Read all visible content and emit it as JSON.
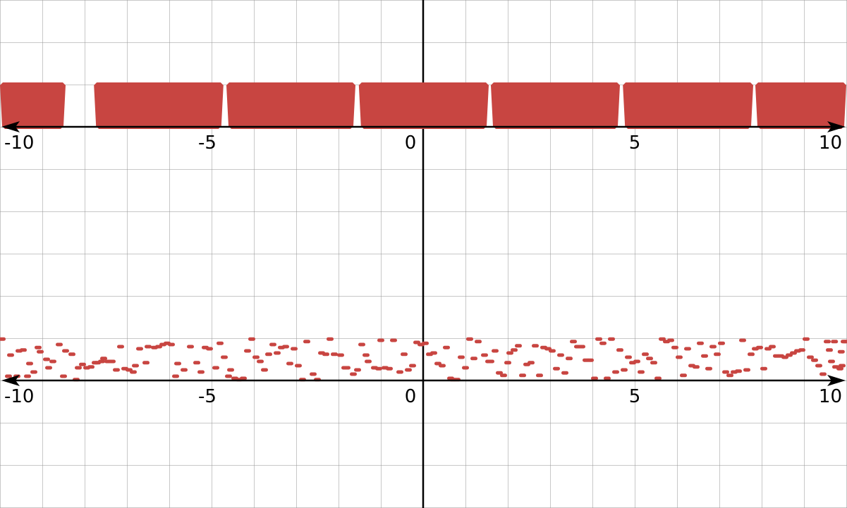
{
  "colors": {
    "grid": "#9a9a9a",
    "axis": "#000000",
    "mark": "#c84541",
    "background": "#ffffff"
  },
  "chart_data": [
    {
      "type": "bar",
      "title": "",
      "xlabel": "",
      "ylabel": "",
      "xlim": [
        -10,
        10
      ],
      "x_ticks": [
        {
          "value": -10,
          "label": "-10"
        },
        {
          "value": -5,
          "label": "-5"
        },
        {
          "value": 0,
          "label": "0"
        },
        {
          "value": 5,
          "label": "5"
        },
        {
          "value": 10,
          "label": "10"
        }
      ],
      "grid": true,
      "segments": [
        {
          "x_start": -10.0,
          "x_end": -8.45
        },
        {
          "x_start": -7.78,
          "x_end": -4.72
        },
        {
          "x_start": -4.65,
          "x_end": -1.6
        },
        {
          "x_start": -1.52,
          "x_end": 1.55
        },
        {
          "x_start": 1.6,
          "x_end": 4.65
        },
        {
          "x_start": 4.72,
          "x_end": 7.8
        },
        {
          "x_start": 7.85,
          "x_end": 10.0
        }
      ]
    },
    {
      "type": "scatter",
      "title": "",
      "xlabel": "",
      "ylabel": "",
      "xlim": [
        -10,
        10
      ],
      "ylim": [
        0,
        1
      ],
      "x_ticks": [
        {
          "value": -10,
          "label": "-10"
        },
        {
          "value": -5,
          "label": "-5"
        },
        {
          "value": 0,
          "label": "0"
        },
        {
          "value": 5,
          "label": "5"
        },
        {
          "value": 10,
          "label": "10"
        }
      ],
      "grid": true,
      "points": [
        [
          -9.95,
          0.98
        ],
        [
          -9.8,
          0.1
        ],
        [
          -9.75,
          0.6
        ],
        [
          -9.6,
          0.1
        ],
        [
          -9.55,
          0.7
        ],
        [
          -9.45,
          0.72
        ],
        [
          -9.35,
          0.1
        ],
        [
          -9.3,
          0.4
        ],
        [
          -9.2,
          0.2
        ],
        [
          -9.1,
          0.78
        ],
        [
          -9.05,
          0.68
        ],
        [
          -8.9,
          0.5
        ],
        [
          -8.85,
          0.3
        ],
        [
          -8.75,
          0.45
        ],
        [
          -8.6,
          0.85
        ],
        [
          -8.5,
          0.1
        ],
        [
          -8.45,
          0.7
        ],
        [
          -8.3,
          0.62
        ],
        [
          -8.2,
          0.02
        ],
        [
          -8.15,
          0.3
        ],
        [
          -8.05,
          0.38
        ],
        [
          -7.95,
          0.3
        ],
        [
          -7.85,
          0.32
        ],
        [
          -7.75,
          0.42
        ],
        [
          -7.7,
          0.42
        ],
        [
          -7.6,
          0.45
        ],
        [
          -7.55,
          0.52
        ],
        [
          -7.45,
          0.45
        ],
        [
          -7.35,
          0.45
        ],
        [
          -7.25,
          0.25
        ],
        [
          -7.15,
          0.8
        ],
        [
          -7.05,
          0.28
        ],
        [
          -6.95,
          0.25
        ],
        [
          -6.85,
          0.2
        ],
        [
          -6.8,
          0.35
        ],
        [
          -6.7,
          0.75
        ],
        [
          -6.55,
          0.42
        ],
        [
          -6.5,
          0.8
        ],
        [
          -6.35,
          0.78
        ],
        [
          -6.25,
          0.8
        ],
        [
          -6.15,
          0.85
        ],
        [
          -6.05,
          0.88
        ],
        [
          -5.95,
          0.85
        ],
        [
          -5.85,
          0.1
        ],
        [
          -5.8,
          0.4
        ],
        [
          -5.65,
          0.25
        ],
        [
          -5.5,
          0.8
        ],
        [
          -5.35,
          0.42
        ],
        [
          -5.25,
          0.2
        ],
        [
          -5.15,
          0.78
        ],
        [
          -5.05,
          0.75
        ],
        [
          -4.9,
          0.3
        ],
        [
          -4.8,
          0.88
        ],
        [
          -4.7,
          0.55
        ],
        [
          -4.6,
          0.1
        ],
        [
          -4.55,
          0.25
        ],
        [
          -4.45,
          0.05
        ],
        [
          -4.35,
          0.02
        ],
        [
          -4.25,
          0.05
        ],
        [
          -4.15,
          0.7
        ],
        [
          -4.05,
          0.98
        ],
        [
          -3.95,
          0.55
        ],
        [
          -3.85,
          0.45
        ],
        [
          -3.75,
          0.25
        ],
        [
          -3.65,
          0.62
        ],
        [
          -3.55,
          0.85
        ],
        [
          -3.45,
          0.65
        ],
        [
          -3.35,
          0.78
        ],
        [
          -3.25,
          0.8
        ],
        [
          -3.15,
          0.4
        ],
        [
          -3.05,
          0.75
        ],
        [
          -2.95,
          0.35
        ],
        [
          -2.85,
          0.02
        ],
        [
          -2.75,
          0.92
        ],
        [
          -2.6,
          0.15
        ],
        [
          -2.5,
          0.02
        ],
        [
          -2.4,
          0.65
        ],
        [
          -2.3,
          0.62
        ],
        [
          -2.2,
          0.98
        ],
        [
          -2.1,
          0.62
        ],
        [
          -1.95,
          0.6
        ],
        [
          -1.85,
          0.3
        ],
        [
          -1.8,
          0.3
        ],
        [
          -1.65,
          0.15
        ],
        [
          -1.55,
          0.25
        ],
        [
          -1.45,
          0.85
        ],
        [
          -1.35,
          0.6
        ],
        [
          -1.3,
          0.45
        ],
        [
          -1.15,
          0.3
        ],
        [
          -1.05,
          0.28
        ],
        [
          -1.0,
          0.95
        ],
        [
          -0.9,
          0.3
        ],
        [
          -0.8,
          0.28
        ],
        [
          -0.7,
          0.95
        ],
        [
          -0.55,
          0.2
        ],
        [
          -0.45,
          0.62
        ],
        [
          -0.35,
          0.25
        ],
        [
          -0.25,
          0.35
        ],
        [
          -0.15,
          0.9
        ],
        [
          -0.05,
          0.85
        ],
        [
          0.05,
          0.88
        ],
        [
          0.15,
          0.62
        ],
        [
          0.25,
          0.65
        ],
        [
          0.35,
          0.4
        ],
        [
          0.45,
          0.35
        ],
        [
          0.55,
          0.78
        ],
        [
          0.65,
          0.05
        ],
        [
          0.7,
          0.02
        ],
        [
          0.8,
          0.02
        ],
        [
          0.9,
          0.55
        ],
        [
          1.0,
          0.3
        ],
        [
          1.1,
          0.98
        ],
        [
          1.2,
          0.52
        ],
        [
          1.3,
          0.92
        ],
        [
          1.45,
          0.6
        ],
        [
          1.55,
          0.45
        ],
        [
          1.6,
          0.45
        ],
        [
          1.7,
          0.7
        ],
        [
          1.8,
          0.18
        ],
        [
          1.9,
          0.12
        ],
        [
          2.0,
          0.42
        ],
        [
          2.05,
          0.65
        ],
        [
          2.15,
          0.72
        ],
        [
          2.25,
          0.82
        ],
        [
          2.35,
          0.12
        ],
        [
          2.45,
          0.38
        ],
        [
          2.55,
          0.42
        ],
        [
          2.65,
          0.82
        ],
        [
          2.75,
          0.12
        ],
        [
          2.85,
          0.78
        ],
        [
          2.95,
          0.75
        ],
        [
          3.05,
          0.7
        ],
        [
          3.15,
          0.28
        ],
        [
          3.25,
          0.6
        ],
        [
          3.35,
          0.18
        ],
        [
          3.45,
          0.52
        ],
        [
          3.55,
          0.92
        ],
        [
          3.65,
          0.8
        ],
        [
          3.75,
          0.8
        ],
        [
          3.85,
          0.48
        ],
        [
          3.95,
          0.48
        ],
        [
          4.05,
          0.05
        ],
        [
          4.15,
          0.98
        ],
        [
          4.25,
          0.88
        ],
        [
          4.35,
          0.05
        ],
        [
          4.45,
          0.98
        ],
        [
          4.55,
          0.2
        ],
        [
          4.65,
          0.72
        ],
        [
          4.75,
          0.25
        ],
        [
          4.85,
          0.55
        ],
        [
          4.95,
          0.42
        ],
        [
          5.05,
          0.45
        ],
        [
          5.15,
          0.2
        ],
        [
          5.25,
          0.62
        ],
        [
          5.35,
          0.52
        ],
        [
          5.45,
          0.42
        ],
        [
          5.55,
          0.05
        ],
        [
          5.65,
          0.98
        ],
        [
          5.75,
          0.92
        ],
        [
          5.85,
          0.95
        ],
        [
          5.95,
          0.78
        ],
        [
          6.05,
          0.55
        ],
        [
          6.15,
          0.12
        ],
        [
          6.25,
          0.75
        ],
        [
          6.35,
          0.35
        ],
        [
          6.45,
          0.32
        ],
        [
          6.55,
          0.88
        ],
        [
          6.65,
          0.58
        ],
        [
          6.75,
          0.28
        ],
        [
          6.85,
          0.8
        ],
        [
          6.95,
          0.62
        ],
        [
          7.05,
          0.88
        ],
        [
          7.15,
          0.2
        ],
        [
          7.25,
          0.12
        ],
        [
          7.35,
          0.2
        ],
        [
          7.45,
          0.22
        ],
        [
          7.55,
          0.95
        ],
        [
          7.65,
          0.25
        ],
        [
          7.75,
          0.62
        ],
        [
          7.85,
          0.75
        ],
        [
          7.95,
          0.78
        ],
        [
          8.05,
          0.28
        ],
        [
          8.15,
          0.75
        ],
        [
          8.25,
          0.8
        ],
        [
          8.35,
          0.58
        ],
        [
          8.45,
          0.58
        ],
        [
          8.55,
          0.55
        ],
        [
          8.65,
          0.6
        ],
        [
          8.75,
          0.65
        ],
        [
          8.85,
          0.7
        ],
        [
          8.95,
          0.72
        ],
        [
          9.05,
          0.98
        ],
        [
          9.15,
          0.55
        ],
        [
          9.25,
          0.48
        ],
        [
          9.35,
          0.35
        ],
        [
          9.45,
          0.15
        ],
        [
          9.55,
          0.92
        ],
        [
          9.65,
          0.45
        ],
        [
          9.75,
          0.32
        ],
        [
          9.85,
          0.28
        ],
        [
          9.95,
          0.92
        ],
        [
          9.98,
          0.92
        ],
        [
          9.88,
          0.68
        ],
        [
          9.9,
          0.35
        ],
        [
          9.72,
          0.92
        ],
        [
          9.6,
          0.72
        ]
      ]
    }
  ]
}
